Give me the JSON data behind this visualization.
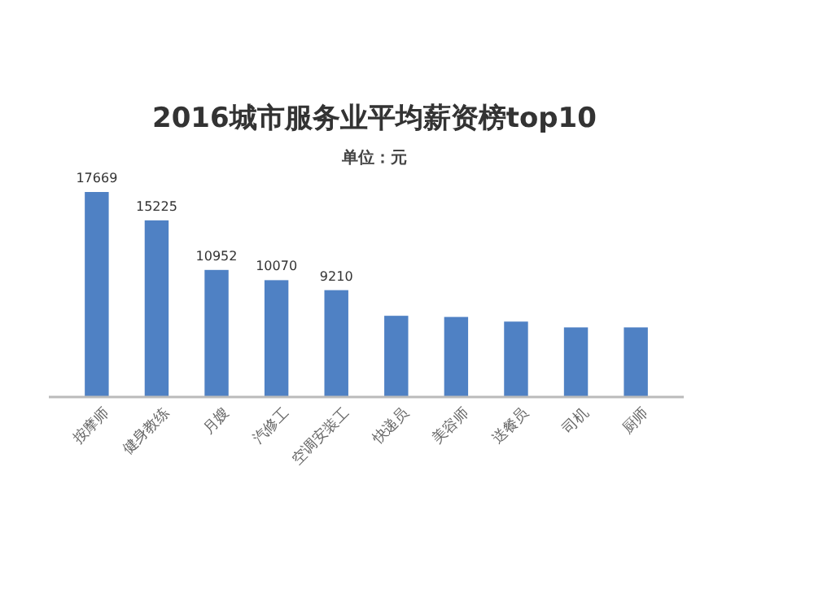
{
  "chart_data": {
    "type": "bar",
    "title": "2016城市服务业平均薪资榜top10",
    "subtitle": "单位：元",
    "categories": [
      "按摩师",
      "健身教练",
      "月嫂",
      "汽修工",
      "空调安装工",
      "快递员",
      "美容师",
      "送餐员",
      "司机",
      "厨师"
    ],
    "values": [
      17669,
      15225,
      10952,
      10070,
      9210,
      7000,
      6900,
      6500,
      6000,
      6000
    ],
    "value_labels": [
      "17669",
      "15225",
      "10952",
      "10070",
      "9210",
      null,
      null,
      null,
      null,
      null
    ],
    "color": "#4f81c4",
    "tick_labels": "x"
  }
}
